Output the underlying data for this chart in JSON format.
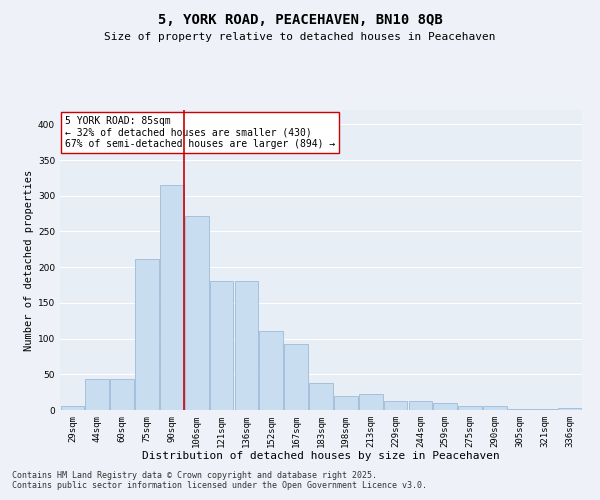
{
  "title1": "5, YORK ROAD, PEACEHAVEN, BN10 8QB",
  "title2": "Size of property relative to detached houses in Peacehaven",
  "xlabel": "Distribution of detached houses by size in Peacehaven",
  "ylabel": "Number of detached properties",
  "categories": [
    "29sqm",
    "44sqm",
    "60sqm",
    "75sqm",
    "90sqm",
    "106sqm",
    "121sqm",
    "136sqm",
    "152sqm",
    "167sqm",
    "183sqm",
    "198sqm",
    "213sqm",
    "229sqm",
    "244sqm",
    "259sqm",
    "275sqm",
    "290sqm",
    "305sqm",
    "321sqm",
    "336sqm"
  ],
  "values": [
    5,
    44,
    44,
    212,
    315,
    272,
    180,
    180,
    110,
    92,
    38,
    20,
    22,
    13,
    12,
    10,
    5,
    5,
    2,
    2,
    3
  ],
  "bar_color": "#c9ddf0",
  "bar_edgecolor": "#9dbbd8",
  "vline_x": 4.5,
  "vline_color": "#cc0000",
  "annotation_text": "5 YORK ROAD: 85sqm\n← 32% of detached houses are smaller (430)\n67% of semi-detached houses are larger (894) →",
  "annotation_box_facecolor": "#ffffff",
  "annotation_box_edgecolor": "#cc0000",
  "annotation_fontsize": 7,
  "title1_fontsize": 10,
  "title2_fontsize": 8,
  "xlabel_fontsize": 8,
  "ylabel_fontsize": 7.5,
  "tick_fontsize": 6.5,
  "footer1": "Contains HM Land Registry data © Crown copyright and database right 2025.",
  "footer2": "Contains public sector information licensed under the Open Government Licence v3.0.",
  "footer_fontsize": 6,
  "ylim": [
    0,
    420
  ],
  "yticks": [
    0,
    50,
    100,
    150,
    200,
    250,
    300,
    350,
    400
  ],
  "bg_color": "#eef2f8",
  "grid_color": "#ffffff",
  "axes_bg": "#e8eef6"
}
